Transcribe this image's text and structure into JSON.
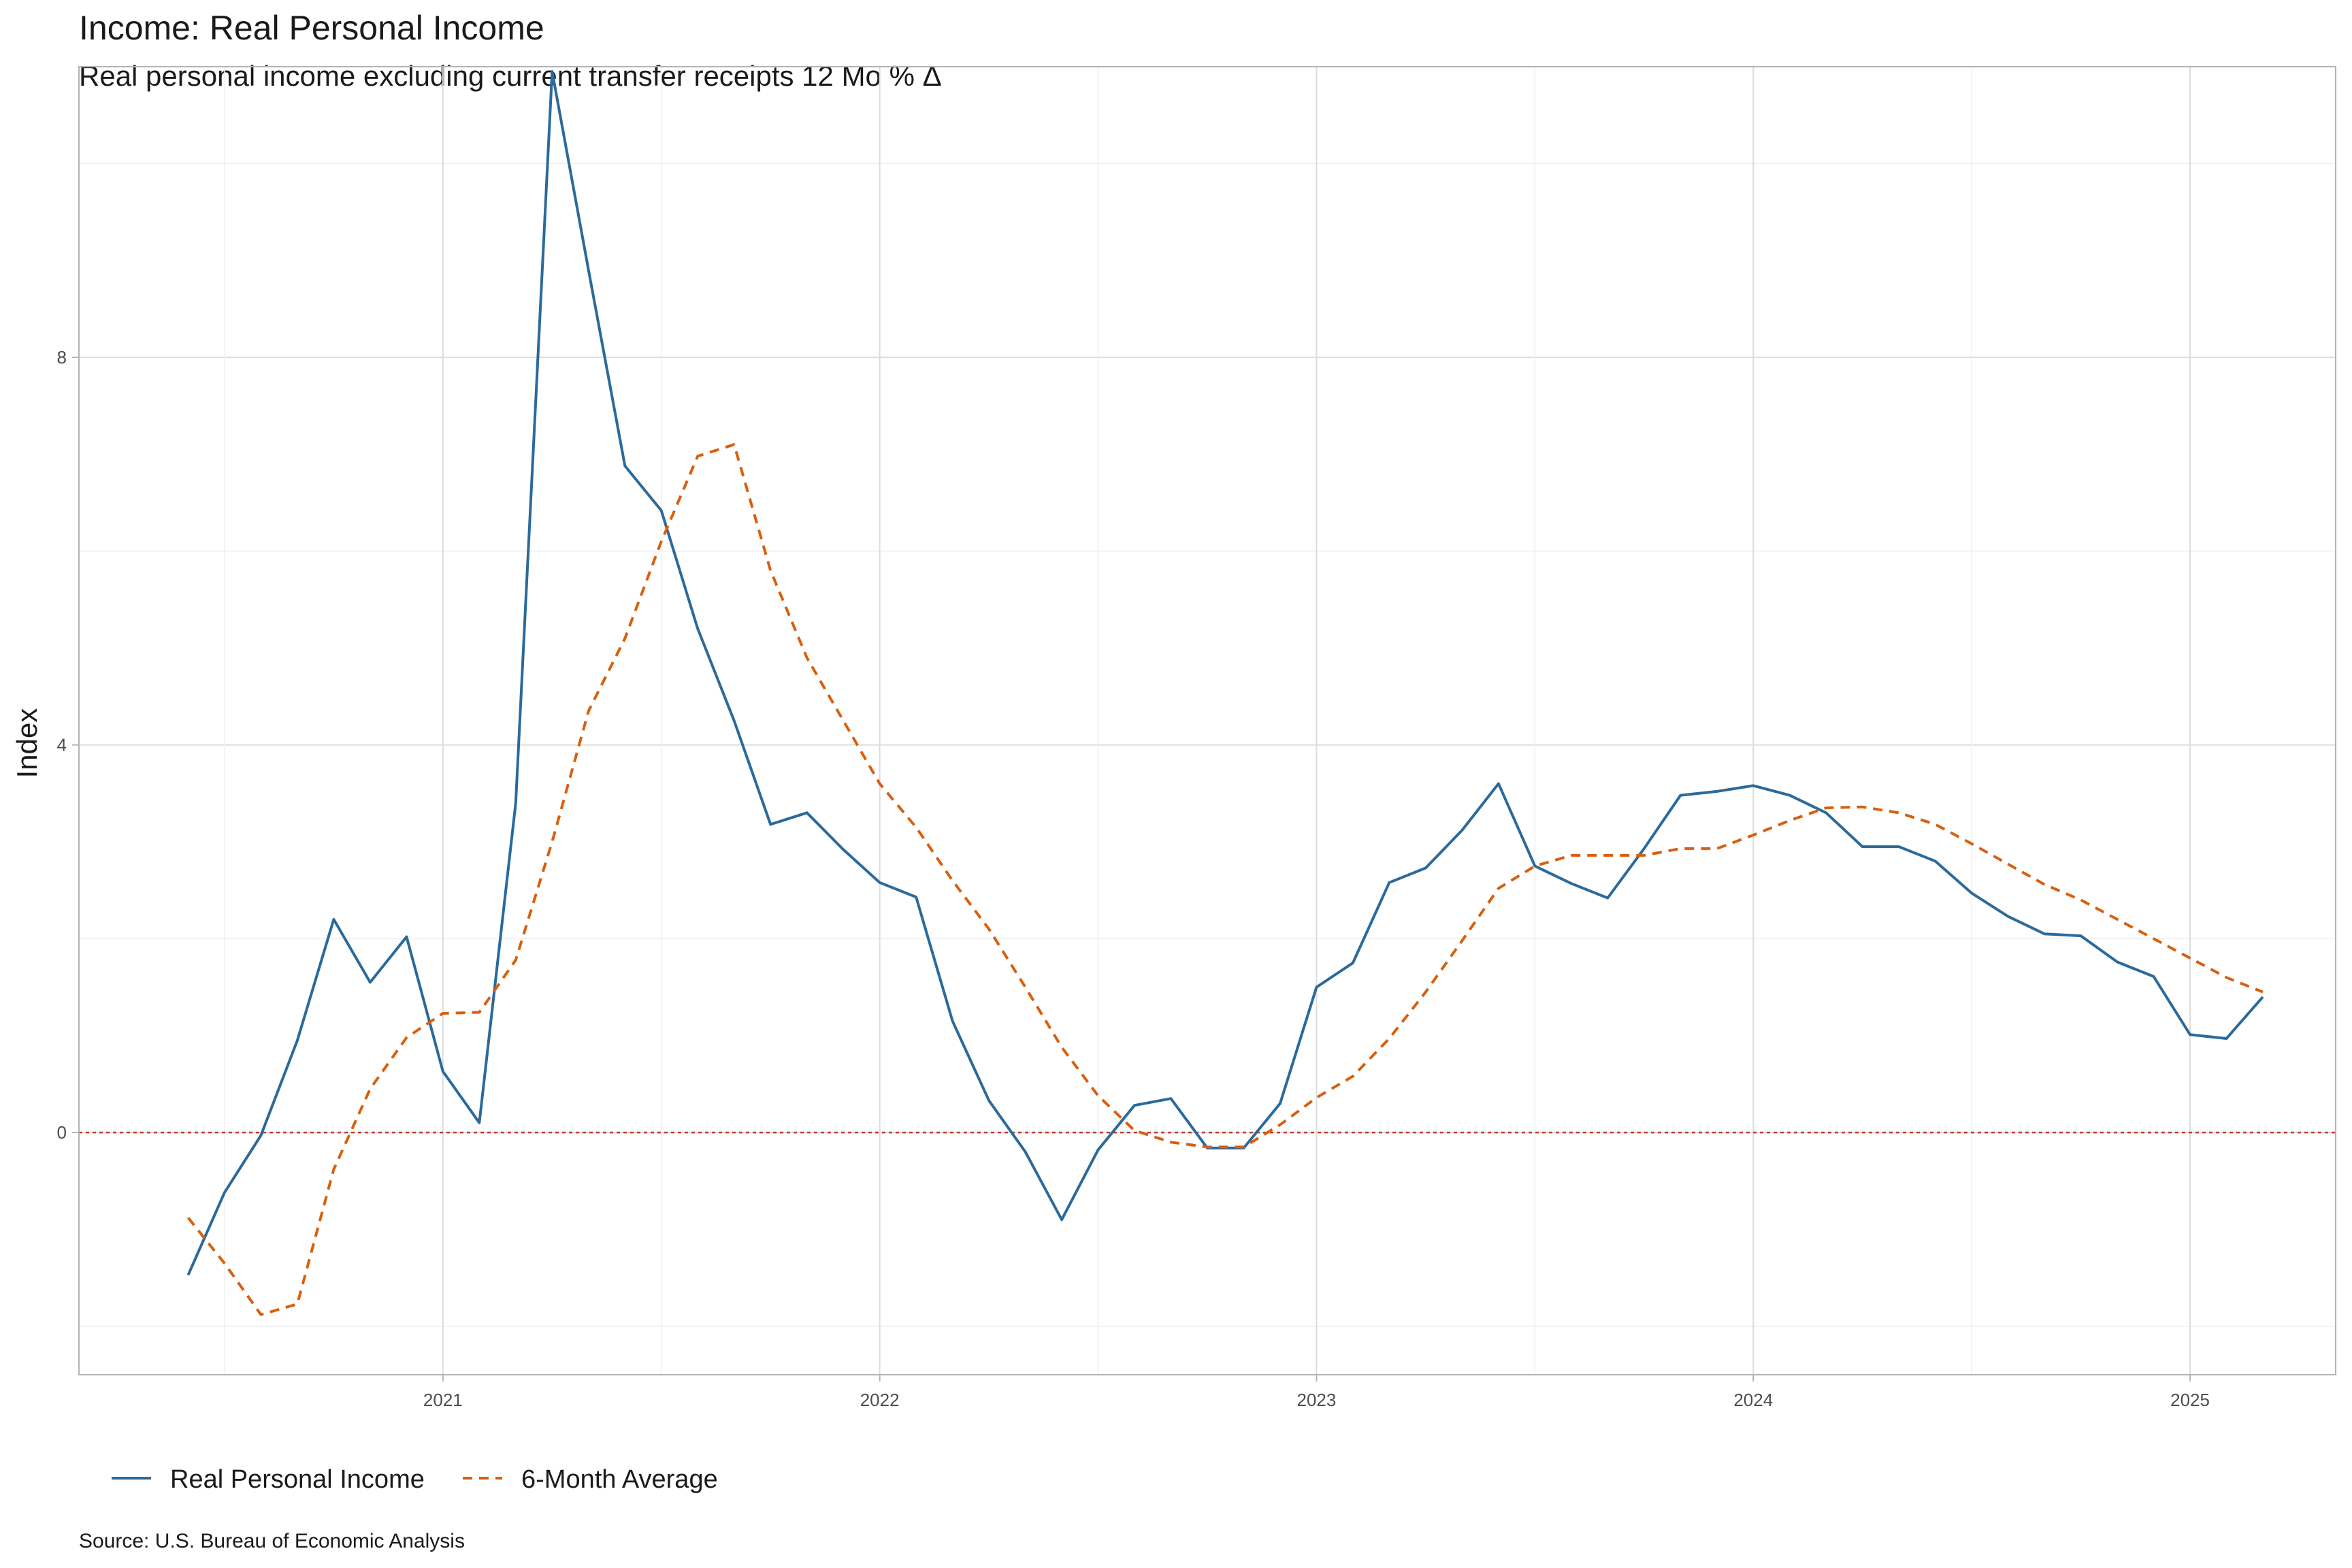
{
  "chart_data": {
    "type": "line",
    "title": "Income: Real Personal Income",
    "subtitle": "Real personal income excluding current transfer receipts 12 Mo % Δ",
    "ylabel": "Index",
    "xlabel": "",
    "caption": "Source:  U.S. Bureau of Economic Analysis",
    "x_ticks": [
      "2021",
      "2022",
      "2023",
      "2024",
      "2025"
    ],
    "y_ticks": [
      "0",
      "4",
      "8"
    ],
    "x_range": [
      "2020-03",
      "2025-05"
    ],
    "ylim": [
      -2.5,
      11.0
    ],
    "reference_line": {
      "y": 0,
      "style": "dotted",
      "color": "#c0392b"
    },
    "legend_position": "bottom-left",
    "colors": {
      "real": "#2b6a9b",
      "avg": "#d95f0e"
    },
    "x": [
      "2020-06",
      "2020-07",
      "2020-08",
      "2020-09",
      "2020-10",
      "2020-11",
      "2020-12",
      "2021-01",
      "2021-02",
      "2021-03",
      "2021-04",
      "2021-05",
      "2021-06",
      "2021-07",
      "2021-08",
      "2021-09",
      "2021-10",
      "2021-11",
      "2021-12",
      "2022-01",
      "2022-02",
      "2022-03",
      "2022-04",
      "2022-05",
      "2022-06",
      "2022-07",
      "2022-08",
      "2022-09",
      "2022-10",
      "2022-11",
      "2022-12",
      "2023-01",
      "2023-02",
      "2023-03",
      "2023-04",
      "2023-05",
      "2023-06",
      "2023-07",
      "2023-08",
      "2023-09",
      "2023-10",
      "2023-11",
      "2023-12",
      "2024-01",
      "2024-02",
      "2024-03",
      "2024-04",
      "2024-05",
      "2024-06",
      "2024-07",
      "2024-08",
      "2024-09",
      "2024-10",
      "2024-11",
      "2024-12",
      "2025-01",
      "2025-02",
      "2025-03"
    ],
    "series": [
      {
        "name": "Real Personal Income",
        "style": "solid",
        "values": [
          -1.47,
          -0.62,
          -0.03,
          0.95,
          2.2,
          1.55,
          2.02,
          0.63,
          0.1,
          3.4,
          10.95,
          8.9,
          6.88,
          6.42,
          5.2,
          4.25,
          3.18,
          3.3,
          2.92,
          2.58,
          2.43,
          1.15,
          0.33,
          -0.2,
          -0.9,
          -0.18,
          0.28,
          0.35,
          -0.16,
          -0.16,
          0.3,
          1.5,
          1.75,
          2.58,
          2.73,
          3.12,
          3.6,
          2.75,
          2.57,
          2.42,
          2.93,
          3.48,
          3.52,
          3.58,
          3.48,
          3.3,
          2.95,
          2.95,
          2.8,
          2.47,
          2.23,
          2.05,
          2.03,
          1.76,
          1.61,
          1.01,
          0.97,
          1.4
        ]
      },
      {
        "name": "6-Month Average",
        "style": "dashed",
        "values": [
          -0.88,
          -1.35,
          -1.88,
          -1.77,
          -0.38,
          0.45,
          0.98,
          1.23,
          1.24,
          1.78,
          3.0,
          4.35,
          5.1,
          6.1,
          6.98,
          7.1,
          5.8,
          4.9,
          4.25,
          3.6,
          3.15,
          2.6,
          2.1,
          1.5,
          0.88,
          0.38,
          0.02,
          -0.1,
          -0.15,
          -0.15,
          0.08,
          0.36,
          0.58,
          0.97,
          1.45,
          1.98,
          2.52,
          2.75,
          2.86,
          2.86,
          2.86,
          2.93,
          2.93,
          3.07,
          3.22,
          3.35,
          3.36,
          3.3,
          3.18,
          2.98,
          2.77,
          2.56,
          2.4,
          2.2,
          2.0,
          1.8,
          1.6,
          1.45
        ]
      }
    ]
  }
}
